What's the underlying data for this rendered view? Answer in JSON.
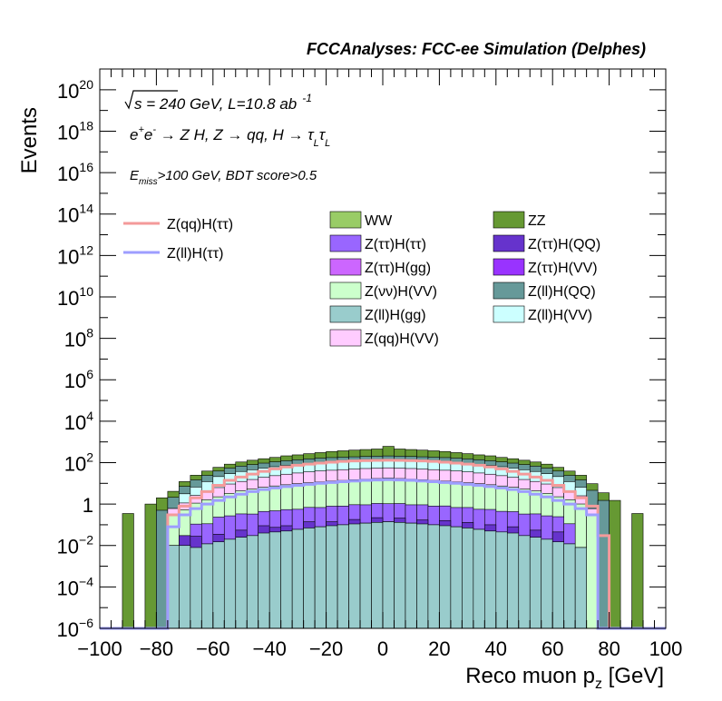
{
  "chart_data": {
    "type": "area",
    "title": "FCCAnalyses: FCC-ee Simulation (Delphes)",
    "xlabel": "Reco muon p",
    "xlabel_sub": "z",
    "xlabel_unit": " [GeV]",
    "ylabel": "Events",
    "log_y": true,
    "xlim": [
      -100,
      100
    ],
    "ylim": [
      1e-06,
      1e+21
    ],
    "x_ticks": [
      "−100",
      "−80",
      "−60",
      "−40",
      "−20",
      "0",
      "20",
      "40",
      "60",
      "80",
      "100"
    ],
    "y_ticks": [
      {
        "base": "10",
        "exp": "−6"
      },
      {
        "base": "10",
        "exp": "−4"
      },
      {
        "base": "10",
        "exp": "−2"
      },
      {
        "base": "1",
        "exp": ""
      },
      {
        "base": "10",
        "exp": "2"
      },
      {
        "base": "10",
        "exp": "4"
      },
      {
        "base": "10",
        "exp": "6"
      },
      {
        "base": "10",
        "exp": "8"
      },
      {
        "base": "10",
        "exp": "10"
      },
      {
        "base": "10",
        "exp": "12"
      },
      {
        "base": "10",
        "exp": "14"
      },
      {
        "base": "10",
        "exp": "16"
      },
      {
        "base": "10",
        "exp": "18"
      },
      {
        "base": "10",
        "exp": "20"
      }
    ],
    "annotations": {
      "energy": "s = 240 GeV, L=10.8 ab",
      "energy_sup": "-1",
      "process_a": "e",
      "process_a_sup": "+",
      "process_b": "e",
      "process_b_sup": "-",
      "process_c": " → Z H, Z  → qq, H  → ",
      "process_tau1": "τ",
      "process_tau1_sub": "L",
      "process_tau2": "τ",
      "process_tau2_sub": "L",
      "cut_e": "E",
      "cut_sub": "miss",
      "cut_rest": ">100 GeV, BDT score>0.5"
    },
    "legend_signals": [
      {
        "name": "Z(qq)H(ττ)",
        "color": "#f49a9a"
      },
      {
        "name": "Z(ll)H(ττ)",
        "color": "#9d9dff"
      }
    ],
    "legend_backgrounds": [
      {
        "name": "WW",
        "color": "#99cc66"
      },
      {
        "name": "ZZ",
        "color": "#669933"
      },
      {
        "name": "Z(ττ)H(ττ)",
        "color": "#9966ff"
      },
      {
        "name": "Z(ττ)H(QQ)",
        "color": "#6633cc"
      },
      {
        "name": "Z(ττ)H(gg)",
        "color": "#cc66ff"
      },
      {
        "name": "Z(ττ)H(VV)",
        "color": "#9933ff"
      },
      {
        "name": "Z(νν)H(VV)",
        "color": "#ccffcc"
      },
      {
        "name": "Z(ll)H(QQ)",
        "color": "#669999"
      },
      {
        "name": "Z(ll)H(gg)",
        "color": "#99cccc"
      },
      {
        "name": "Z(ll)H(VV)",
        "color": "#ccffff"
      },
      {
        "name": "Z(qq)H(VV)",
        "color": "#ffccff"
      }
    ],
    "x_bins": [
      -100,
      96
    ],
    "bin_width": 4,
    "stack_series": [
      {
        "name": "Z(ll)H(gg)",
        "color": "#99cccc",
        "values": {
          "-76": 0.01,
          "-72": 0.01,
          "-68": 0.008,
          "-64": 0.012,
          "-60": 0.015,
          "-56": 0.02,
          "-52": 0.025,
          "-48": 0.03,
          "-44": 0.04,
          "-40": 0.045,
          "-36": 0.05,
          "-32": 0.06,
          "-28": 0.07,
          "-24": 0.08,
          "-20": 0.09,
          "-16": 0.1,
          "-12": 0.11,
          "-8": 0.12,
          "-4": 0.13,
          "0": 0.14,
          "4": 0.13,
          "8": 0.12,
          "12": 0.11,
          "16": 0.1,
          "20": 0.09,
          "24": 0.08,
          "28": 0.07,
          "32": 0.06,
          "36": 0.05,
          "40": 0.045,
          "44": 0.04,
          "48": 0.03,
          "52": 0.025,
          "56": 0.02,
          "60": 0.015,
          "64": 0.012,
          "68": 0.008
        }
      },
      {
        "name": "Z(ττ)H(QQ)",
        "color": "#6633cc",
        "values": {
          "-72": 0.02,
          "-68": 0.02,
          "-60": 0.02,
          "-52": 0.03,
          "-44": 0.05,
          "-40": 0.03,
          "-36": 0.04,
          "-28": 0.07,
          "-20": 0.05,
          "-12": 0.07,
          "-4": 0.09,
          "4": 0.08,
          "12": 0.06,
          "20": 0.07,
          "28": 0.06,
          "36": 0.05,
          "44": 0.04,
          "52": 0.03,
          "60": 0.03
        }
      },
      {
        "name": "Z(ττ)H(ττ)",
        "color": "#9966ff",
        "values": {
          "-68": 0.08,
          "-64": 0.1,
          "-60": 0.2,
          "-56": 0.25,
          "-52": 0.28,
          "-48": 0.3,
          "-44": 0.35,
          "-40": 0.4,
          "-36": 0.45,
          "-32": 0.5,
          "-28": 0.55,
          "-24": 0.6,
          "-20": 0.65,
          "-16": 0.7,
          "-12": 0.75,
          "-8": 0.8,
          "-4": 0.85,
          "0": 0.9,
          "4": 0.85,
          "8": 0.8,
          "12": 0.75,
          "16": 0.7,
          "20": 0.65,
          "24": 0.6,
          "28": 0.55,
          "32": 0.5,
          "36": 0.45,
          "40": 0.4,
          "44": 0.35,
          "48": 0.3,
          "52": 0.28,
          "56": 0.25,
          "60": 0.2,
          "64": 0.1
        }
      },
      {
        "name": "Z(νν)H(VV)",
        "color": "#ccffcc",
        "values": {
          "-76": 0.3,
          "-72": 0.5,
          "-68": 1.0,
          "-64": 1.5,
          "-60": 2,
          "-56": 3,
          "-52": 4,
          "-48": 5,
          "-44": 6,
          "-40": 7,
          "-36": 8,
          "-32": 9,
          "-28": 10,
          "-24": 11,
          "-20": 12,
          "-16": 13,
          "-12": 14,
          "-8": 15,
          "-4": 16,
          "0": 17,
          "4": 16,
          "8": 15,
          "12": 14,
          "16": 13,
          "20": 12,
          "24": 11,
          "28": 10,
          "32": 9,
          "36": 8,
          "40": 7,
          "44": 6,
          "48": 5,
          "52": 4,
          "56": 3,
          "60": 2,
          "64": 1.5,
          "68": 1.0,
          "72": 0.3
        }
      },
      {
        "name": "Z(qq)H(VV)",
        "color": "#ffccff",
        "values": {
          "-76": 0.3,
          "-72": 0.6,
          "-68": 1.5,
          "-64": 2.5,
          "-60": 4,
          "-56": 6,
          "-52": 8,
          "-48": 10,
          "-44": 13,
          "-40": 16,
          "-36": 19,
          "-32": 22,
          "-28": 25,
          "-24": 28,
          "-20": 30,
          "-16": 32,
          "-12": 34,
          "-8": 36,
          "-4": 37,
          "0": 38,
          "4": 37,
          "8": 36,
          "12": 34,
          "16": 32,
          "20": 30,
          "24": 28,
          "28": 25,
          "32": 22,
          "36": 19,
          "40": 16,
          "44": 13,
          "48": 10,
          "52": 8,
          "56": 6,
          "60": 4,
          "64": 2.5,
          "68": 1.5,
          "72": 0.3
        }
      },
      {
        "name": "Z(ll)H(VV)",
        "color": "#ccffff",
        "values": {
          "-72": 2,
          "-68": 4,
          "-64": 8,
          "-60": 15,
          "-56": 20,
          "-52": 25,
          "-48": 30,
          "-44": 35,
          "-40": 40,
          "-36": 45,
          "-32": 50,
          "-28": 55,
          "-24": 60,
          "-20": 62,
          "-16": 65,
          "-12": 68,
          "-8": 70,
          "-4": 72,
          "0": 74,
          "4": 72,
          "8": 70,
          "12": 68,
          "16": 65,
          "20": 62,
          "24": 60,
          "28": 55,
          "32": 50,
          "36": 45,
          "40": 40,
          "44": 35,
          "48": 30,
          "52": 25,
          "56": 20,
          "60": 15,
          "64": 8,
          "68": 4
        }
      },
      {
        "name": "Z(ll)H(QQ)",
        "color": "#669999",
        "values": {
          "-80": 0.5,
          "-76": 1.5,
          "-72": 4,
          "-68": 8,
          "-64": 12,
          "-60": 18,
          "-56": 25,
          "-52": 30,
          "-48": 35,
          "-44": 40,
          "-40": 45,
          "-36": 50,
          "-32": 55,
          "-28": 60,
          "-24": 65,
          "-20": 70,
          "-16": 72,
          "-12": 74,
          "-8": 76,
          "-4": 78,
          "0": 80,
          "4": 78,
          "8": 76,
          "12": 74,
          "16": 72,
          "20": 70,
          "24": 65,
          "28": 60,
          "32": 55,
          "36": 50,
          "40": 45,
          "44": 40,
          "48": 35,
          "52": 30,
          "56": 25,
          "60": 18,
          "64": 12,
          "68": 8,
          "72": 4,
          "76": 1.5
        }
      },
      {
        "name": "ZZ",
        "color": "#669933",
        "values": {
          "-92": 0.35,
          "-84": 1.0,
          "-80": 1.5,
          "-76": 2,
          "-72": 5,
          "-68": 10,
          "-64": 15,
          "-60": 20,
          "-56": 30,
          "-52": 40,
          "-48": 50,
          "-44": 60,
          "-40": 70,
          "-36": 90,
          "-32": 100,
          "-28": 120,
          "-24": 140,
          "-20": 170,
          "-16": 190,
          "-12": 210,
          "-8": 230,
          "-4": 250,
          "0": 400,
          "4": 250,
          "8": 230,
          "12": 210,
          "16": 190,
          "20": 170,
          "24": 140,
          "28": 120,
          "32": 100,
          "36": 90,
          "40": 70,
          "44": 60,
          "48": 50,
          "52": 40,
          "56": 30,
          "60": 20,
          "64": 15,
          "68": 10,
          "72": 5,
          "76": 2,
          "80": 1.5,
          "88": 0.35
        }
      }
    ],
    "signal_series": [
      {
        "name": "Z(qq)H(ττ)",
        "color": "#f49a9a",
        "values": {
          "-76": 0.3,
          "-72": 0.8,
          "-68": 2,
          "-64": 4,
          "-60": 8,
          "-56": 14,
          "-52": 20,
          "-48": 28,
          "-44": 38,
          "-40": 50,
          "-36": 62,
          "-32": 75,
          "-28": 85,
          "-24": 95,
          "-20": 105,
          "-16": 115,
          "-12": 120,
          "-8": 125,
          "-4": 128,
          "0": 130,
          "4": 128,
          "8": 125,
          "12": 120,
          "16": 115,
          "20": 105,
          "24": 95,
          "28": 85,
          "32": 75,
          "36": 62,
          "40": 50,
          "44": 38,
          "48": 28,
          "52": 20,
          "56": 14,
          "60": 8,
          "64": 4,
          "68": 2,
          "72": 0.8,
          "76": 0.03
        }
      },
      {
        "name": "Z(ll)H(ττ)",
        "color": "#9d9dff",
        "values": {
          "-76": 0.08,
          "-72": 0.3,
          "-68": 0.6,
          "-64": 1.0,
          "-60": 1.5,
          "-56": 2.2,
          "-52": 3,
          "-48": 4,
          "-44": 5,
          "-40": 6,
          "-36": 7,
          "-32": 8,
          "-28": 9,
          "-24": 10,
          "-20": 11,
          "-16": 12,
          "-12": 13,
          "-8": 14,
          "-4": 14.5,
          "0": 15,
          "4": 14.5,
          "8": 14,
          "12": 13,
          "16": 12,
          "20": 11,
          "24": 10,
          "28": 9,
          "32": 8,
          "36": 7,
          "40": 6,
          "44": 5,
          "48": 4,
          "52": 3,
          "56": 2.2,
          "60": 1.5,
          "64": 1.0,
          "68": 0.6,
          "72": 0.3
        }
      }
    ]
  }
}
